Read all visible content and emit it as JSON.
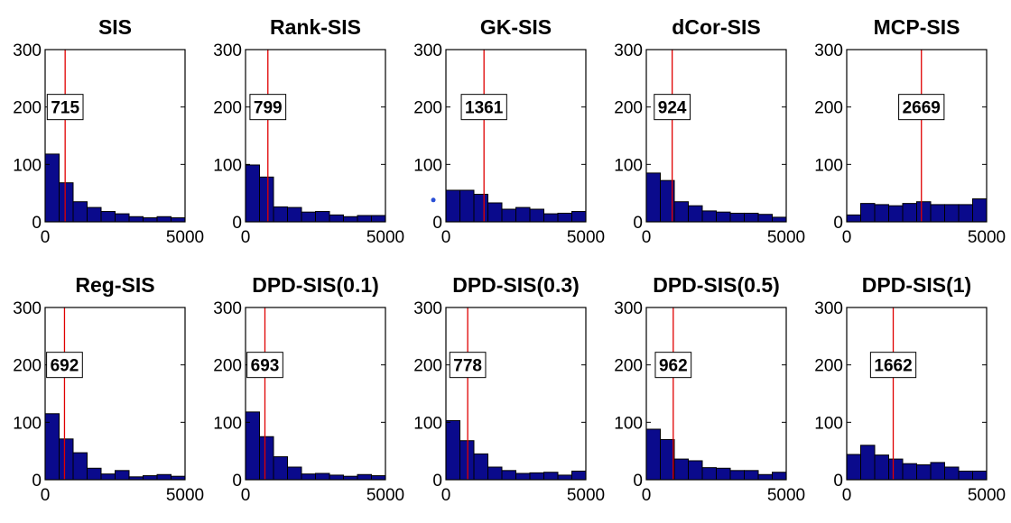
{
  "colors": {
    "bar_fill": "#0a0a8c",
    "median_line": "#e00000",
    "stray_point": "#2a4fd6"
  },
  "chart_data": [
    {
      "type": "bar",
      "title": "SIS",
      "bin_edges": [
        0,
        500,
        1000,
        1500,
        2000,
        2500,
        3000,
        3500,
        4000,
        4500,
        5000
      ],
      "values": [
        118,
        68,
        35,
        25,
        18,
        14,
        9,
        7,
        9,
        7
      ],
      "median": 715,
      "median_label": "715",
      "xlim": [
        0,
        5000
      ],
      "ylim": [
        0,
        300
      ],
      "xticks": [
        "0",
        "5000"
      ],
      "yticks": [
        "0",
        "100",
        "200",
        "300"
      ]
    },
    {
      "type": "bar",
      "title": "Rank-SIS",
      "bin_edges": [
        0,
        500,
        1000,
        1500,
        2000,
        2500,
        3000,
        3500,
        4000,
        4500,
        5000
      ],
      "values": [
        99,
        78,
        26,
        25,
        17,
        18,
        12,
        9,
        11,
        11
      ],
      "median": 799,
      "median_label": "799",
      "xlim": [
        0,
        5000
      ],
      "ylim": [
        0,
        300
      ],
      "xticks": [
        "0",
        "5000"
      ],
      "yticks": [
        "0",
        "100",
        "200",
        "300"
      ]
    },
    {
      "type": "bar",
      "title": "GK-SIS",
      "bin_edges": [
        0,
        500,
        1000,
        1500,
        2000,
        2500,
        3000,
        3500,
        4000,
        4500,
        5000
      ],
      "values": [
        55,
        55,
        48,
        33,
        22,
        25,
        22,
        14,
        15,
        18
      ],
      "median": 1361,
      "median_label": "1361",
      "xlim": [
        0,
        5000
      ],
      "ylim": [
        0,
        300
      ],
      "xticks": [
        "0",
        "5000"
      ],
      "yticks": [
        "0",
        "100",
        "200",
        "300"
      ],
      "extra_point": {
        "x": -450,
        "y": 38
      }
    },
    {
      "type": "bar",
      "title": "dCor-SIS",
      "bin_edges": [
        0,
        500,
        1000,
        1500,
        2000,
        2500,
        3000,
        3500,
        4000,
        4500,
        5000
      ],
      "values": [
        85,
        72,
        35,
        28,
        19,
        17,
        15,
        15,
        13,
        8
      ],
      "median": 924,
      "median_label": "924",
      "xlim": [
        0,
        5000
      ],
      "ylim": [
        0,
        300
      ],
      "xticks": [
        "0",
        "5000"
      ],
      "yticks": [
        "0",
        "100",
        "200",
        "300"
      ]
    },
    {
      "type": "bar",
      "title": "MCP-SIS",
      "bin_edges": [
        0,
        500,
        1000,
        1500,
        2000,
        2500,
        3000,
        3500,
        4000,
        4500,
        5000
      ],
      "values": [
        12,
        32,
        30,
        28,
        32,
        35,
        30,
        30,
        30,
        40
      ],
      "median": 2669,
      "median_label": "2669",
      "xlim": [
        0,
        5000
      ],
      "ylim": [
        0,
        300
      ],
      "xticks": [
        "0",
        "5000"
      ],
      "yticks": [
        "0",
        "100",
        "200",
        "300"
      ]
    },
    {
      "type": "bar",
      "title": "Reg-SIS",
      "bin_edges": [
        0,
        500,
        1000,
        1500,
        2000,
        2500,
        3000,
        3500,
        4000,
        4500,
        5000
      ],
      "values": [
        115,
        71,
        47,
        20,
        10,
        16,
        5,
        7,
        9,
        6
      ],
      "median": 692,
      "median_label": "692",
      "xlim": [
        0,
        5000
      ],
      "ylim": [
        0,
        300
      ],
      "xticks": [
        "0",
        "5000"
      ],
      "yticks": [
        "0",
        "100",
        "200",
        "300"
      ]
    },
    {
      "type": "bar",
      "title": "DPD-SIS(0.1)",
      "bin_edges": [
        0,
        500,
        1000,
        1500,
        2000,
        2500,
        3000,
        3500,
        4000,
        4500,
        5000
      ],
      "values": [
        118,
        75,
        40,
        22,
        10,
        11,
        8,
        6,
        9,
        7
      ],
      "median": 693,
      "median_label": "693",
      "xlim": [
        0,
        5000
      ],
      "ylim": [
        0,
        300
      ],
      "xticks": [
        "0",
        "5000"
      ],
      "yticks": [
        "0",
        "100",
        "200",
        "300"
      ]
    },
    {
      "type": "bar",
      "title": "DPD-SIS(0.3)",
      "bin_edges": [
        0,
        500,
        1000,
        1500,
        2000,
        2500,
        3000,
        3500,
        4000,
        4500,
        5000
      ],
      "values": [
        103,
        68,
        45,
        22,
        16,
        11,
        12,
        13,
        8,
        15
      ],
      "median": 778,
      "median_label": "778",
      "xlim": [
        0,
        5000
      ],
      "ylim": [
        0,
        300
      ],
      "xticks": [
        "0",
        "5000"
      ],
      "yticks": [
        "0",
        "100",
        "200",
        "300"
      ]
    },
    {
      "type": "bar",
      "title": "DPD-SIS(0.5)",
      "bin_edges": [
        0,
        500,
        1000,
        1500,
        2000,
        2500,
        3000,
        3500,
        4000,
        4500,
        5000
      ],
      "values": [
        88,
        70,
        36,
        33,
        21,
        20,
        16,
        16,
        9,
        13
      ],
      "median": 962,
      "median_label": "962",
      "xlim": [
        0,
        5000
      ],
      "ylim": [
        0,
        300
      ],
      "xticks": [
        "0",
        "5000"
      ],
      "yticks": [
        "0",
        "100",
        "200",
        "300"
      ]
    },
    {
      "type": "bar",
      "title": "DPD-SIS(1)",
      "bin_edges": [
        0,
        500,
        1000,
        1500,
        2000,
        2500,
        3000,
        3500,
        4000,
        4500,
        5000
      ],
      "values": [
        44,
        60,
        43,
        36,
        28,
        26,
        30,
        22,
        15,
        15
      ],
      "median": 1662,
      "median_label": "1662",
      "xlim": [
        0,
        5000
      ],
      "ylim": [
        0,
        300
      ],
      "xticks": [
        "0",
        "5000"
      ],
      "yticks": [
        "0",
        "100",
        "200",
        "300"
      ]
    }
  ]
}
